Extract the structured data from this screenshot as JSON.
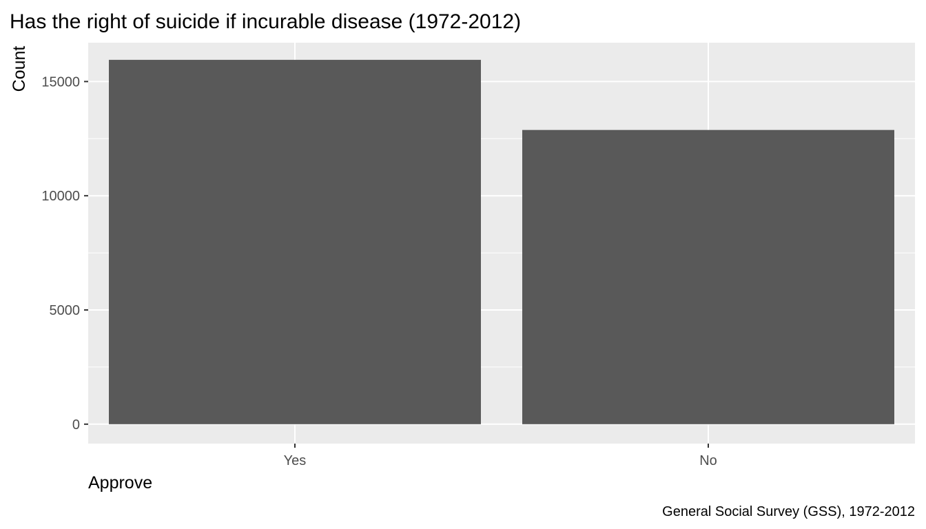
{
  "chart_data": {
    "type": "bar",
    "title": "Has the right of suicide if incurable disease (1972-2012)",
    "xlabel": "Approve",
    "ylabel": "Count",
    "caption": "General Social Survey (GSS), 1972-2012",
    "categories": [
      "Yes",
      "No"
    ],
    "values": [
      15950,
      12880
    ],
    "ylim": [
      -850,
      16700
    ],
    "yticks": [
      0,
      5000,
      10000,
      15000
    ],
    "ytick_labels": [
      "0",
      "5000",
      "10000",
      "15000"
    ],
    "grid": true,
    "legend": "none",
    "colors": {
      "panel": "#ebebeb",
      "grid_major": "#ffffff",
      "bar": "#595959",
      "tick": "#333333"
    }
  }
}
